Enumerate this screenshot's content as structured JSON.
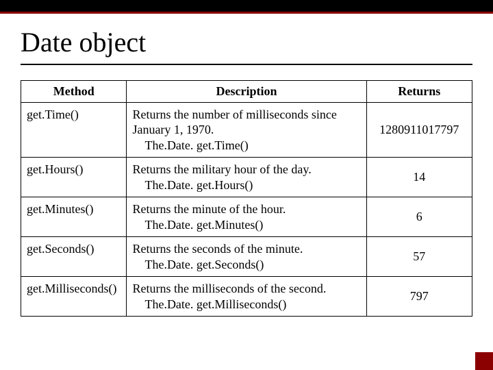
{
  "title": "Date object",
  "table": {
    "columns": [
      "Method",
      "Description",
      "Returns"
    ],
    "rows": [
      {
        "method": "get.Time()",
        "desc_line1": "Returns the number of milliseconds since January 1, 1970.",
        "desc_example": "The.Date. get.Time()",
        "returns": "1280911017797"
      },
      {
        "method": "get.Hours()",
        "desc_line1": "Returns the military hour of the day.",
        "desc_example": "The.Date. get.Hours()",
        "returns": "14"
      },
      {
        "method": "get.Minutes()",
        "desc_line1": "Returns the minute of the hour.",
        "desc_example": "The.Date. get.Minutes()",
        "returns": "6"
      },
      {
        "method": "get.Seconds()",
        "desc_line1": "Returns the seconds of the minute.",
        "desc_example": "The.Date. get.Seconds()",
        "returns": "57"
      },
      {
        "method": "get.Milliseconds()",
        "desc_line1": "Returns the milliseconds of the second.",
        "desc_example": "The.Date. get.Milliseconds()",
        "returns": "797"
      }
    ]
  },
  "colors": {
    "accent": "#8b0000",
    "border": "#000000",
    "background": "#ffffff",
    "text": "#000000"
  }
}
